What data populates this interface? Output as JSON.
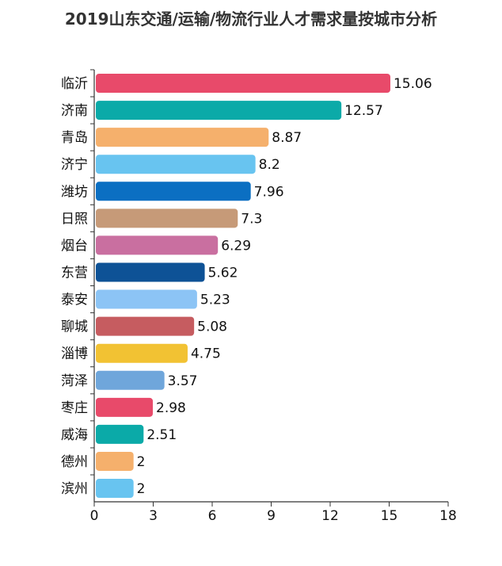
{
  "chart_data": {
    "type": "bar",
    "orientation": "horizontal",
    "title": "2019山东交通/运输/物流行业人才需求量按城市分析",
    "categories": [
      "临沂",
      "济南",
      "青岛",
      "济宁",
      "潍坊",
      "日照",
      "烟台",
      "东营",
      "泰安",
      "聊城",
      "淄博",
      "菏泽",
      "枣庄",
      "威海",
      "德州",
      "滨州"
    ],
    "values": [
      15.06,
      12.57,
      8.87,
      8.2,
      7.96,
      7.3,
      6.29,
      5.62,
      5.23,
      5.08,
      4.75,
      3.57,
      2.98,
      2.51,
      2,
      2
    ],
    "value_labels": [
      "15.06",
      "12.57",
      "8.87",
      "8.2",
      "7.96",
      "7.3",
      "6.29",
      "5.62",
      "5.23",
      "5.08",
      "4.75",
      "3.57",
      "2.98",
      "2.51",
      "2",
      "2"
    ],
    "colors": [
      "#e84a6a",
      "#0baaa8",
      "#f5b06c",
      "#68c4f0",
      "#0b6fc2",
      "#c69a78",
      "#c96fa0",
      "#0e5296",
      "#8cc4f5",
      "#c65c60",
      "#f2c233",
      "#6fa6db",
      "#e84a6a",
      "#0baaa8",
      "#f5b06c",
      "#68c4f0"
    ],
    "xlim": [
      0,
      18
    ],
    "xticks": [
      "0",
      "3",
      "6",
      "9",
      "12",
      "15",
      "18"
    ],
    "grid": false,
    "xlabel": "",
    "ylabel": ""
  }
}
